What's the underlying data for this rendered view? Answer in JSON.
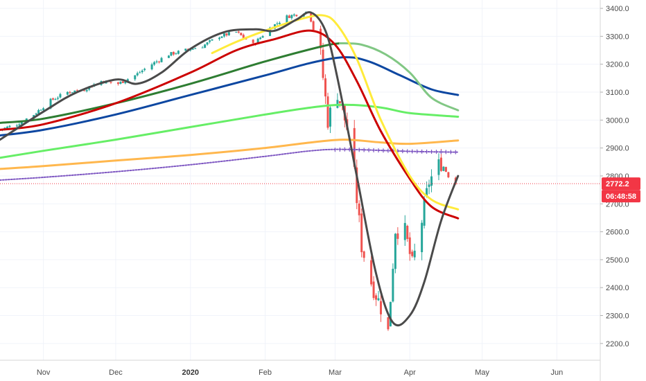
{
  "chart_data": {
    "type": "candlestick",
    "title": "",
    "xlabel": "",
    "ylabel": "",
    "ylim": [
      2140,
      3430
    ],
    "y_ticks": [
      "3400.0",
      "3300.0",
      "3200.0",
      "3100.0",
      "3000.0",
      "2900.0",
      "2800.0",
      "2700.0",
      "2600.0",
      "2500.0",
      "2400.0",
      "2300.0",
      "2200.0"
    ],
    "y_tick_values": [
      3400,
      3300,
      3200,
      3100,
      3000,
      2900,
      2800,
      2700,
      2600,
      2500,
      2400,
      2300,
      2200
    ],
    "x_ticks": [
      {
        "label": "Nov",
        "date": "2019-11-01",
        "bold": false
      },
      {
        "label": "Dec",
        "date": "2019-12-01",
        "bold": false
      },
      {
        "label": "2020",
        "date": "2020-01-01",
        "bold": true
      },
      {
        "label": "Feb",
        "date": "2020-02-01",
        "bold": false
      },
      {
        "label": "Mar",
        "date": "2020-03-01",
        "bold": false
      },
      {
        "label": "Apr",
        "date": "2020-04-01",
        "bold": false
      },
      {
        "label": "May",
        "date": "2020-05-01",
        "bold": false
      },
      {
        "label": "Jun",
        "date": "2020-06-01",
        "bold": false
      }
    ],
    "x_range": [
      "2019-10-14",
      "2020-06-19"
    ],
    "grid": true,
    "last_price": {
      "value": 2772.2,
      "label": "2772.2",
      "color": "#f23645"
    },
    "countdown": {
      "label": "06:48:58",
      "color": "#f23645"
    },
    "up_color": "#26a69a",
    "down_color": "#ef5350",
    "candle_anchors": [
      [
        "2019-10-14",
        2966
      ],
      [
        "2019-10-21",
        2985
      ],
      [
        "2019-10-28",
        3020
      ],
      [
        "2019-11-04",
        3070
      ],
      [
        "2019-11-11",
        3100
      ],
      [
        "2019-11-18",
        3110
      ],
      [
        "2019-11-25",
        3140
      ],
      [
        "2019-12-02",
        3130
      ],
      [
        "2019-12-09",
        3160
      ],
      [
        "2019-12-16",
        3200
      ],
      [
        "2019-12-23",
        3235
      ],
      [
        "2019-12-30",
        3250
      ],
      [
        "2020-01-06",
        3265
      ],
      [
        "2020-01-13",
        3300
      ],
      [
        "2020-01-20",
        3315
      ],
      [
        "2020-01-27",
        3270
      ],
      [
        "2020-02-03",
        3330
      ],
      [
        "2020-02-10",
        3370
      ],
      [
        "2020-02-19",
        3390
      ],
      [
        "2020-02-24",
        3230
      ],
      [
        "2020-02-27",
        3000
      ],
      [
        "2020-03-02",
        3100
      ],
      [
        "2020-03-06",
        2970
      ],
      [
        "2020-03-09",
        2800
      ],
      [
        "2020-03-12",
        2550
      ],
      [
        "2020-03-16",
        2420
      ],
      [
        "2020-03-20",
        2330
      ],
      [
        "2020-03-23",
        2240
      ],
      [
        "2020-03-26",
        2610
      ],
      [
        "2020-03-30",
        2600
      ],
      [
        "2020-04-02",
        2480
      ],
      [
        "2020-04-06",
        2640
      ],
      [
        "2020-04-09",
        2780
      ],
      [
        "2020-04-14",
        2850
      ],
      [
        "2020-04-17",
        2800
      ],
      [
        "2020-04-20",
        2772
      ]
    ],
    "series": [
      {
        "key": "ma_black",
        "color": "#4a4a4a",
        "width": 3,
        "dotted": false,
        "points": [
          [
            "2019-10-14",
            2930
          ],
          [
            "2019-11-01",
            3030
          ],
          [
            "2019-11-15",
            3100
          ],
          [
            "2019-12-01",
            3145
          ],
          [
            "2019-12-10",
            3130
          ],
          [
            "2019-12-20",
            3170
          ],
          [
            "2020-01-01",
            3255
          ],
          [
            "2020-01-15",
            3315
          ],
          [
            "2020-01-28",
            3325
          ],
          [
            "2020-02-05",
            3320
          ],
          [
            "2020-02-14",
            3360
          ],
          [
            "2020-02-20",
            3385
          ],
          [
            "2020-02-26",
            3320
          ],
          [
            "2020-03-02",
            3150
          ],
          [
            "2020-03-10",
            2800
          ],
          [
            "2020-03-18",
            2450
          ],
          [
            "2020-03-25",
            2275
          ],
          [
            "2020-04-01",
            2300
          ],
          [
            "2020-04-07",
            2420
          ],
          [
            "2020-04-14",
            2640
          ],
          [
            "2020-04-21",
            2800
          ]
        ]
      },
      {
        "key": "ma_yellow",
        "color": "#ffeb3b",
        "width": 3,
        "dotted": false,
        "points": [
          [
            "2020-01-10",
            3240
          ],
          [
            "2020-01-20",
            3280
          ],
          [
            "2020-02-01",
            3320
          ],
          [
            "2020-02-15",
            3360
          ],
          [
            "2020-02-25",
            3375
          ],
          [
            "2020-03-02",
            3340
          ],
          [
            "2020-03-10",
            3220
          ],
          [
            "2020-03-20",
            3000
          ],
          [
            "2020-04-01",
            2800
          ],
          [
            "2020-04-10",
            2715
          ],
          [
            "2020-04-21",
            2680
          ]
        ]
      },
      {
        "key": "ma_red",
        "color": "#cc0000",
        "width": 3,
        "dotted": false,
        "points": [
          [
            "2019-10-14",
            2965
          ],
          [
            "2019-11-01",
            2985
          ],
          [
            "2019-12-01",
            3060
          ],
          [
            "2020-01-01",
            3170
          ],
          [
            "2020-01-20",
            3250
          ],
          [
            "2020-02-05",
            3290
          ],
          [
            "2020-02-20",
            3320
          ],
          [
            "2020-03-01",
            3270
          ],
          [
            "2020-03-10",
            3140
          ],
          [
            "2020-03-20",
            2960
          ],
          [
            "2020-04-01",
            2790
          ],
          [
            "2020-04-10",
            2690
          ],
          [
            "2020-04-21",
            2648
          ]
        ]
      },
      {
        "key": "ma_darkgreen",
        "color": "#2e7d32",
        "width": 3,
        "dotted": false,
        "points": [
          [
            "2019-10-14",
            2990
          ],
          [
            "2019-11-01",
            3005
          ],
          [
            "2019-12-01",
            3060
          ],
          [
            "2020-01-01",
            3130
          ],
          [
            "2020-02-01",
            3210
          ],
          [
            "2020-02-25",
            3265
          ],
          [
            "2020-03-03",
            3275
          ]
        ]
      },
      {
        "key": "ma_lightgreen",
        "color": "#81c784",
        "width": 3,
        "dotted": false,
        "points": [
          [
            "2020-03-03",
            3275
          ],
          [
            "2020-03-12",
            3270
          ],
          [
            "2020-03-22",
            3235
          ],
          [
            "2020-04-01",
            3170
          ],
          [
            "2020-04-10",
            3080
          ],
          [
            "2020-04-21",
            3035
          ]
        ]
      },
      {
        "key": "ma_blue",
        "color": "#0d47a1",
        "width": 3,
        "dotted": false,
        "points": [
          [
            "2019-10-14",
            2945
          ],
          [
            "2019-11-01",
            2965
          ],
          [
            "2019-12-01",
            3020
          ],
          [
            "2020-01-01",
            3090
          ],
          [
            "2020-02-01",
            3160
          ],
          [
            "2020-02-20",
            3205
          ],
          [
            "2020-03-05",
            3225
          ],
          [
            "2020-03-15",
            3210
          ],
          [
            "2020-03-28",
            3160
          ],
          [
            "2020-04-10",
            3110
          ],
          [
            "2020-04-21",
            3090
          ]
        ]
      },
      {
        "key": "ma_brightgreen",
        "color": "#66ee66",
        "width": 3,
        "dotted": false,
        "points": [
          [
            "2019-10-14",
            2865
          ],
          [
            "2019-11-01",
            2890
          ],
          [
            "2019-12-01",
            2930
          ],
          [
            "2020-01-01",
            2975
          ],
          [
            "2020-02-01",
            3020
          ],
          [
            "2020-02-20",
            3045
          ],
          [
            "2020-03-05",
            3055
          ],
          [
            "2020-03-20",
            3045
          ],
          [
            "2020-04-01",
            3025
          ],
          [
            "2020-04-21",
            3012
          ]
        ]
      },
      {
        "key": "ma_orange",
        "color": "#ffb74d",
        "width": 3,
        "dotted": false,
        "points": [
          [
            "2019-10-14",
            2825
          ],
          [
            "2019-11-01",
            2835
          ],
          [
            "2019-12-01",
            2855
          ],
          [
            "2020-01-01",
            2875
          ],
          [
            "2020-02-01",
            2900
          ],
          [
            "2020-02-20",
            2920
          ],
          [
            "2020-03-05",
            2930
          ],
          [
            "2020-03-20",
            2920
          ],
          [
            "2020-04-01",
            2915
          ],
          [
            "2020-04-21",
            2927
          ]
        ]
      },
      {
        "key": "ma_purple",
        "color": "#7e57c2",
        "width": 2,
        "dotted": true,
        "points": [
          [
            "2019-10-14",
            2785
          ],
          [
            "2019-11-01",
            2795
          ],
          [
            "2019-12-01",
            2815
          ],
          [
            "2020-01-01",
            2840
          ],
          [
            "2020-02-01",
            2870
          ],
          [
            "2020-02-20",
            2890
          ],
          [
            "2020-03-05",
            2895
          ],
          [
            "2020-04-01",
            2888
          ],
          [
            "2020-04-21",
            2885
          ]
        ]
      }
    ]
  }
}
